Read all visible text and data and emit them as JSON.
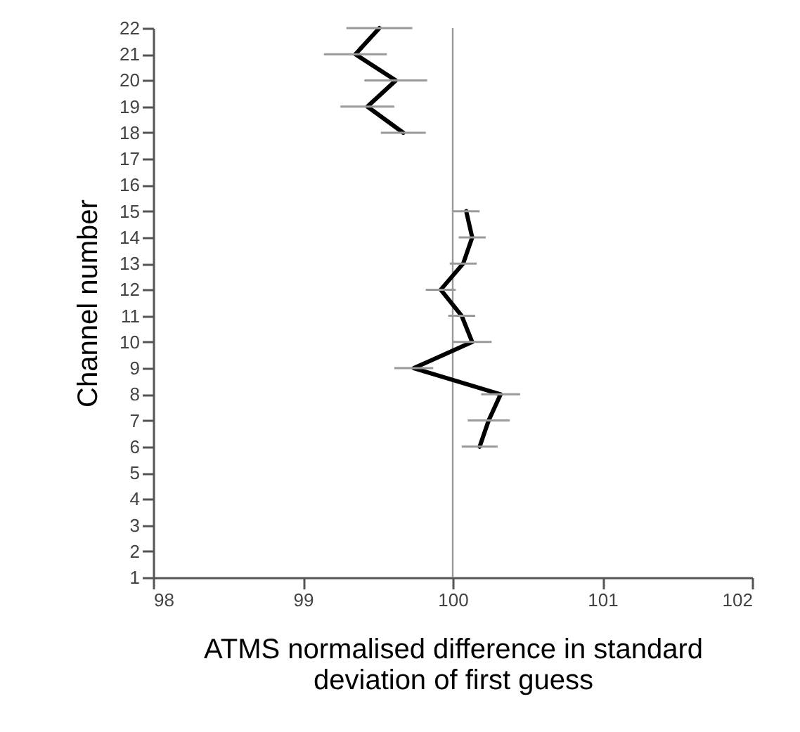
{
  "chart_data": {
    "type": "line",
    "orientation": "horizontal",
    "xlabel": "ATMS normalised difference in standard deviation of first guess",
    "ylabel": "Channel number",
    "series": [
      {
        "color": "#000000",
        "x": [
          6,
          7,
          8,
          9,
          10,
          11,
          12,
          13,
          14,
          15
        ],
        "values": [
          100.18,
          100.24,
          100.32,
          99.74,
          100.13,
          100.06,
          99.92,
          100.07,
          100.13,
          100.09
        ],
        "errors": [
          0.12,
          0.14,
          0.13,
          0.13,
          0.13,
          0.09,
          0.1,
          0.09,
          0.09,
          0.09
        ]
      },
      {
        "color": "#000000",
        "x": [
          18,
          19,
          20,
          21,
          22
        ],
        "values": [
          99.67,
          99.43,
          99.62,
          99.35,
          99.51
        ],
        "errors": [
          0.15,
          0.18,
          0.21,
          0.21,
          0.22
        ]
      }
    ],
    "xlim": [
      98,
      102
    ],
    "xticks": [
      98,
      99,
      100,
      101,
      102
    ],
    "ylim": [
      1,
      22
    ],
    "yticks": [
      1,
      2,
      3,
      4,
      5,
      6,
      7,
      8,
      9,
      10,
      11,
      12,
      13,
      14,
      15,
      16,
      17,
      18,
      19,
      20,
      21,
      22
    ],
    "ref_lines": [
      {
        "axis": "x",
        "value": 100,
        "color": "#999999"
      }
    ],
    "grid": false,
    "marker": "none",
    "line_style": "solid"
  }
}
